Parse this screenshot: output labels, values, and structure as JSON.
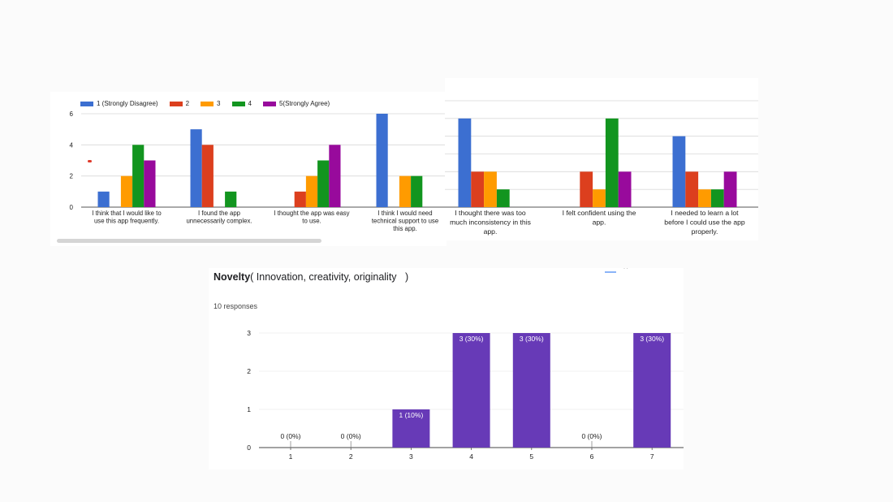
{
  "colors": {
    "s1": "#3c6fd1",
    "s2": "#dc3f1e",
    "s3": "#ff9b00",
    "s4": "#12951f",
    "s5": "#980a9c",
    "novelty_bar": "#673ab7"
  },
  "chart_data": [
    {
      "type": "bar",
      "legend": [
        "1 (Strongly Disagree)",
        "2",
        "3",
        "4",
        "5(Strongly Agree)"
      ],
      "legend_position": "top",
      "yticks": [
        "0",
        "2",
        "4",
        "6"
      ],
      "ylim": [
        0,
        6
      ],
      "categories": [
        "I think that I would like to use this app frequently.",
        "I found the app unnecessarily complex.",
        "I thought the app was easy to use.",
        "I think I would need technical support to use this app."
      ],
      "category_lines": [
        [
          "I think that I would like to",
          "use this app frequently."
        ],
        [
          "I found the app",
          "unnecessarily complex."
        ],
        [
          "I thought the app was easy",
          "to use."
        ],
        [
          "I think I would need",
          "technical support to use",
          "this app."
        ]
      ],
      "series": [
        {
          "name": "1 (Strongly Disagree)",
          "values": [
            1,
            5,
            0,
            6
          ]
        },
        {
          "name": "2",
          "values": [
            0,
            4,
            1,
            0
          ]
        },
        {
          "name": "3",
          "values": [
            2,
            0,
            2,
            2
          ]
        },
        {
          "name": "4",
          "values": [
            4,
            1,
            3,
            2
          ]
        },
        {
          "name": "5(Strongly Agree)",
          "values": [
            3,
            0,
            4,
            0
          ]
        }
      ]
    },
    {
      "type": "bar",
      "ylim": [
        0,
        6
      ],
      "categories": [
        "I thought there was too much inconsistency in this app.",
        "I felt confident using the app.",
        "I needed to learn a lot before I could use the app properly."
      ],
      "category_lines": [
        [
          "I thought there was too",
          "much inconsistency in this",
          "app."
        ],
        [
          "I felt confident using the",
          "app."
        ],
        [
          "I needed to learn a lot",
          "before I could use the app",
          "properly."
        ]
      ],
      "series": [
        {
          "name": "1 (Strongly Disagree)",
          "values": [
            5,
            0,
            4
          ]
        },
        {
          "name": "2",
          "values": [
            2,
            2,
            2
          ]
        },
        {
          "name": "3",
          "values": [
            2,
            1,
            1
          ]
        },
        {
          "name": "4",
          "values": [
            1,
            5,
            1
          ]
        },
        {
          "name": "5(Strongly Agree)",
          "values": [
            0,
            2,
            2
          ]
        }
      ]
    },
    {
      "type": "bar",
      "title_bold": "Novelty",
      "title_rest": "( Innovation, creativity, originality   )",
      "subtitle": "10 responses",
      "categories": [
        "1",
        "2",
        "3",
        "4",
        "5",
        "6",
        "7"
      ],
      "values": [
        0,
        0,
        1,
        3,
        3,
        0,
        3
      ],
      "data_labels": [
        "0 (0%)",
        "0 (0%)",
        "1 (10%)",
        "3 (30%)",
        "3 (30%)",
        "0 (0%)",
        "3 (30%)"
      ],
      "yticks": [
        "0",
        "1",
        "2",
        "3"
      ],
      "ylim": [
        0,
        3
      ]
    }
  ]
}
